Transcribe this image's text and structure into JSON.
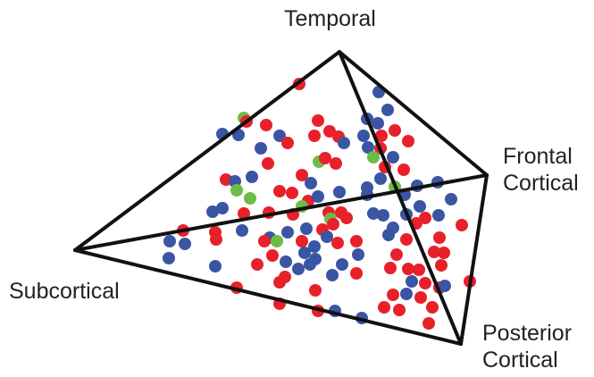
{
  "vertices": {
    "temporal": "Temporal",
    "frontal_line1": "Frontal",
    "frontal_line2": "Cortical",
    "subcortical": "Subcortical",
    "posterior_line1": "Posterior",
    "posterior_line2": "Cortical"
  },
  "colors": {
    "edge": "#111111",
    "blue": "#3a55a4",
    "red": "#e8202a",
    "green": "#6cbd45"
  }
}
